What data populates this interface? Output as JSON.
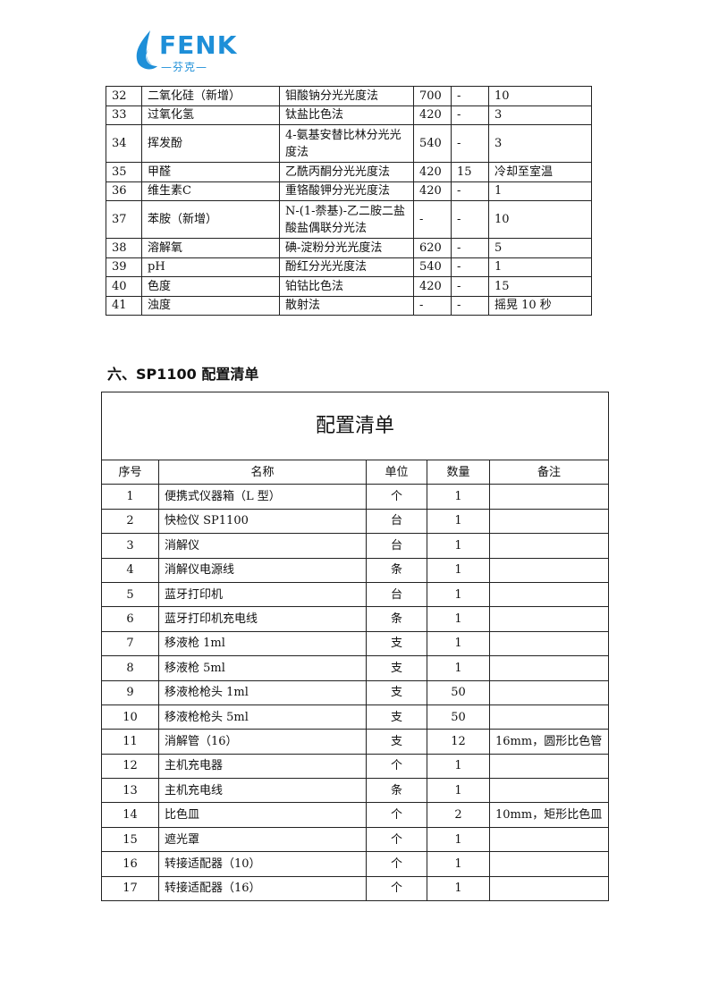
{
  "logo": {
    "brand": "FENK",
    "sub": "—芬克—",
    "color": "#1e8fd8"
  },
  "table1": {
    "rows": [
      [
        "32",
        "二氧化硅（新增）",
        "钼酸钠分光光度法",
        "700",
        "-",
        "10"
      ],
      [
        "33",
        "过氧化氢",
        "钛盐比色法",
        "420",
        "-",
        "3"
      ],
      [
        "34",
        "挥发酚",
        "4-氨基安替比林分光光度法",
        "540",
        "-",
        "3"
      ],
      [
        "35",
        "甲醛",
        "乙酰丙酮分光光度法",
        "420",
        "15",
        "冷却至室温"
      ],
      [
        "36",
        "维生素C",
        "重铬酸钾分光光度法",
        "420",
        "-",
        "1"
      ],
      [
        "37",
        "苯胺（新增）",
        "N-(1-萘基)-乙二胺二盐酸盐偶联分光法",
        "-",
        "-",
        "10"
      ],
      [
        "38",
        "溶解氧",
        "碘-淀粉分光光度法",
        "620",
        "-",
        "5"
      ],
      [
        "39",
        "pH",
        "酚红分光光度法",
        "540",
        "-",
        "1"
      ],
      [
        "40",
        "色度",
        "铂钴比色法",
        "420",
        "-",
        "15"
      ],
      [
        "41",
        "浊度",
        "散射法",
        "-",
        "-",
        "摇晃 10 秒"
      ]
    ]
  },
  "section_heading": "六、SP1100 配置清单",
  "table2": {
    "title": "配置清单",
    "headers": [
      "序号",
      "名称",
      "单位",
      "数量",
      "备注"
    ],
    "rows": [
      [
        "1",
        "便携式仪器箱（L 型）",
        "个",
        "1",
        ""
      ],
      [
        "2",
        "快检仪 SP1100",
        "台",
        "1",
        ""
      ],
      [
        "3",
        "消解仪",
        "台",
        "1",
        ""
      ],
      [
        "4",
        "消解仪电源线",
        "条",
        "1",
        ""
      ],
      [
        "5",
        "蓝牙打印机",
        "台",
        "1",
        ""
      ],
      [
        "6",
        "蓝牙打印机充电线",
        "条",
        "1",
        ""
      ],
      [
        "7",
        "移液枪 1ml",
        "支",
        "1",
        ""
      ],
      [
        "8",
        "移液枪 5ml",
        "支",
        "1",
        ""
      ],
      [
        "9",
        "移液枪枪头 1ml",
        "支",
        "50",
        ""
      ],
      [
        "10",
        "移液枪枪头 5ml",
        "支",
        "50",
        ""
      ],
      [
        "11",
        "消解管（16）",
        "支",
        "12",
        "16mm，圆形比色管"
      ],
      [
        "12",
        "主机充电器",
        "个",
        "1",
        ""
      ],
      [
        "13",
        "主机充电线",
        "条",
        "1",
        ""
      ],
      [
        "14",
        "比色皿",
        "个",
        "2",
        "10mm，矩形比色皿"
      ],
      [
        "15",
        "遮光罩",
        "个",
        "1",
        ""
      ],
      [
        "16",
        "转接适配器（10）",
        "个",
        "1",
        ""
      ],
      [
        "17",
        "转接适配器（16）",
        "个",
        "1",
        ""
      ]
    ]
  }
}
